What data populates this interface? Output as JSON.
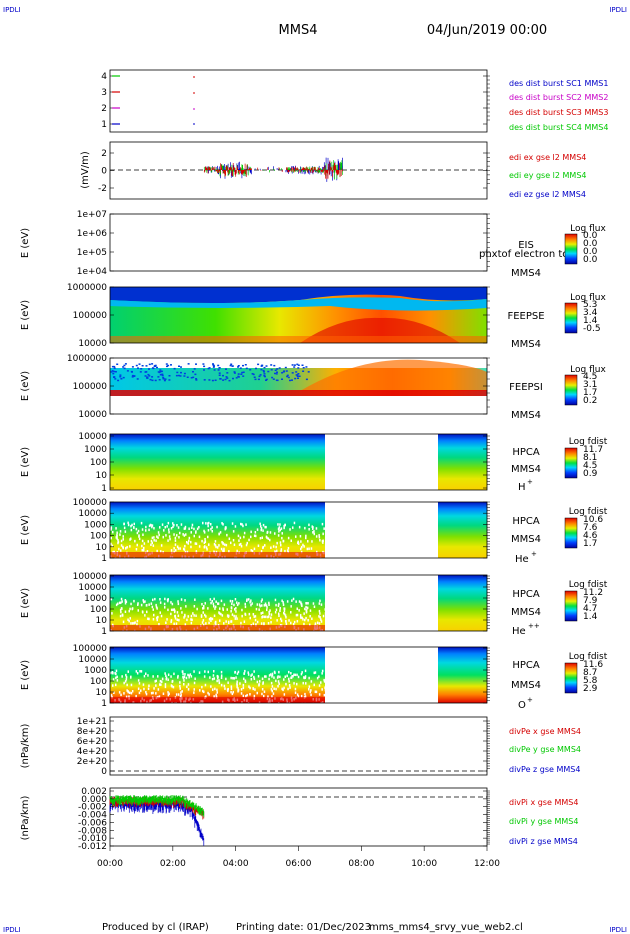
{
  "header": {
    "corner_label": "IPDLI",
    "spacecraft": "MMS4",
    "date": "04/Jun/2019 00:00"
  },
  "footer": {
    "produced_by": "Produced by cl (IRAP)",
    "printing_date": "Printing date: 01/Dec/2023",
    "file": "mms_mms4_srvy_vue_web2.cl"
  },
  "colors": {
    "red": "#d40000",
    "green": "#00c800",
    "blue": "#0000c8",
    "magenta": "#c800c8"
  },
  "chart_data": [
    {
      "type": "line",
      "id": "burst",
      "x_ticks": [
        "00:00",
        "02:00",
        "04:00",
        "06:00",
        "08:00",
        "10:00",
        "12:00"
      ],
      "xlim": [
        0,
        12
      ],
      "y_ticks": [
        "1",
        "2",
        "3",
        "4"
      ],
      "ylim": [
        0.5,
        4.5
      ],
      "series": [
        {
          "name": "des dist burst SC1 MMS1",
          "color": "#0000c8",
          "level": 4
        },
        {
          "name": "des dist burst SC2 MMS2",
          "color": "#c800c8",
          "level": 2
        },
        {
          "name": "des dist burst SC3 MMS3",
          "color": "#d40000",
          "level": 3
        },
        {
          "name": "des dist burst SC4 MMS4",
          "color": "#00c800",
          "level": 1
        }
      ]
    },
    {
      "type": "line",
      "id": "edi",
      "ylabel": "(mV/m)",
      "y_ticks": [
        "2",
        "0",
        "-2"
      ],
      "ylim": [
        -3,
        3
      ],
      "data_range_hours": [
        3.0,
        7.4
      ],
      "series": [
        {
          "name": "edi ex gse l2 MMS4",
          "color": "#d40000"
        },
        {
          "name": "edi ey gse l2 MMS4",
          "color": "#00c800"
        },
        {
          "name": "edi ez gse l2 MMS4",
          "color": "#0000c8"
        }
      ]
    },
    {
      "type": "heatmap",
      "id": "eis",
      "ylabel": "E (eV)",
      "y_ticks": [
        "1e+07",
        "1e+06",
        "1e+05",
        "1e+04"
      ],
      "instrument": "EIS",
      "sc": "MMS4",
      "overlay": "phxtof electron to",
      "colorbar_title": "Log flux",
      "colorbar_ticks": [
        "0.0",
        "0.0",
        "0.0",
        "0.0"
      ]
    },
    {
      "type": "heatmap",
      "id": "feeps-e",
      "ylabel": "E (eV)",
      "y_ticks": [
        "1000000",
        "100000",
        "10000"
      ],
      "instrument": "FEEPSE",
      "sc": "MMS4",
      "colorbar_title": "Log flux",
      "colorbar_ticks": [
        "5.3",
        "3.4",
        "1.4",
        "-0.5"
      ]
    },
    {
      "type": "heatmap",
      "id": "feeps-i",
      "ylabel": "E (eV)",
      "y_ticks": [
        "1000000",
        "100000",
        "10000"
      ],
      "instrument": "FEEPSI",
      "sc": "MMS4",
      "colorbar_title": "Log flux",
      "colorbar_ticks": [
        "4.5",
        "3.1",
        "1.7",
        "0.2"
      ]
    },
    {
      "type": "heatmap",
      "id": "hpca-h",
      "ylabel": "E (eV)",
      "y_ticks": [
        "10000",
        "1000",
        "100",
        "10",
        "1"
      ],
      "instrument": "HPCA",
      "sc": "MMS4",
      "species": "H",
      "species_sup": "+",
      "colorbar_title": "Log fdist",
      "colorbar_ticks": [
        "11.7",
        "8.1",
        "4.5",
        "0.9"
      ],
      "data_gap_hours": [
        6.85,
        10.45
      ]
    },
    {
      "type": "heatmap",
      "id": "hpca-he",
      "ylabel": "E (eV)",
      "y_ticks": [
        "100000",
        "10000",
        "1000",
        "100",
        "10",
        "1"
      ],
      "instrument": "HPCA",
      "sc": "MMS4",
      "species": "He",
      "species_sup": "+",
      "colorbar_title": "Log fdist",
      "colorbar_ticks": [
        "10.6",
        "7.6",
        "4.6",
        "1.7"
      ],
      "data_gap_hours": [
        6.85,
        10.45
      ]
    },
    {
      "type": "heatmap",
      "id": "hpca-hepp",
      "ylabel": "E (eV)",
      "y_ticks": [
        "100000",
        "10000",
        "1000",
        "100",
        "10",
        "1"
      ],
      "instrument": "HPCA",
      "sc": "MMS4",
      "species": "He",
      "species_sup": "++",
      "colorbar_title": "Log fdist",
      "colorbar_ticks": [
        "11.2",
        "7.9",
        "4.7",
        "1.4"
      ],
      "data_gap_hours": [
        6.85,
        10.45
      ]
    },
    {
      "type": "heatmap",
      "id": "hpca-o",
      "ylabel": "E (eV)",
      "y_ticks": [
        "100000",
        "10000",
        "1000",
        "100",
        "10",
        "1"
      ],
      "instrument": "HPCA",
      "sc": "MMS4",
      "species": "O",
      "species_sup": "+",
      "colorbar_title": "Log fdist",
      "colorbar_ticks": [
        "11.6",
        "8.7",
        "5.8",
        "2.9"
      ],
      "data_gap_hours": [
        6.85,
        10.45
      ]
    },
    {
      "type": "line",
      "id": "divpe",
      "ylabel": "(nPa/km)",
      "y_ticks": [
        "1e+21",
        "8e+20",
        "6e+20",
        "4e+20",
        "2e+20",
        "0"
      ],
      "ylim": [
        0,
        1e+21
      ],
      "series": [
        {
          "name": "divPe x gse MMS4",
          "color": "#d40000"
        },
        {
          "name": "divPe y gse MMS4",
          "color": "#00c800"
        },
        {
          "name": "divPe z gse MMS4",
          "color": "#0000c8"
        }
      ]
    },
    {
      "type": "line",
      "id": "divpi",
      "ylabel": "(nPa/km)",
      "y_ticks": [
        "0.002",
        "0.000",
        "-0.002",
        "-0.004",
        "-0.006",
        "-0.008",
        "-0.010",
        "-0.012"
      ],
      "ylim": [
        -0.0125,
        0.0025
      ],
      "data_range_hours": [
        0.0,
        3.0
      ],
      "series": [
        {
          "name": "divPi x gse MMS4",
          "color": "#d40000"
        },
        {
          "name": "divPi y gse MMS4",
          "color": "#00c800"
        },
        {
          "name": "divPi z gse MMS4",
          "color": "#0000c8"
        }
      ]
    }
  ]
}
